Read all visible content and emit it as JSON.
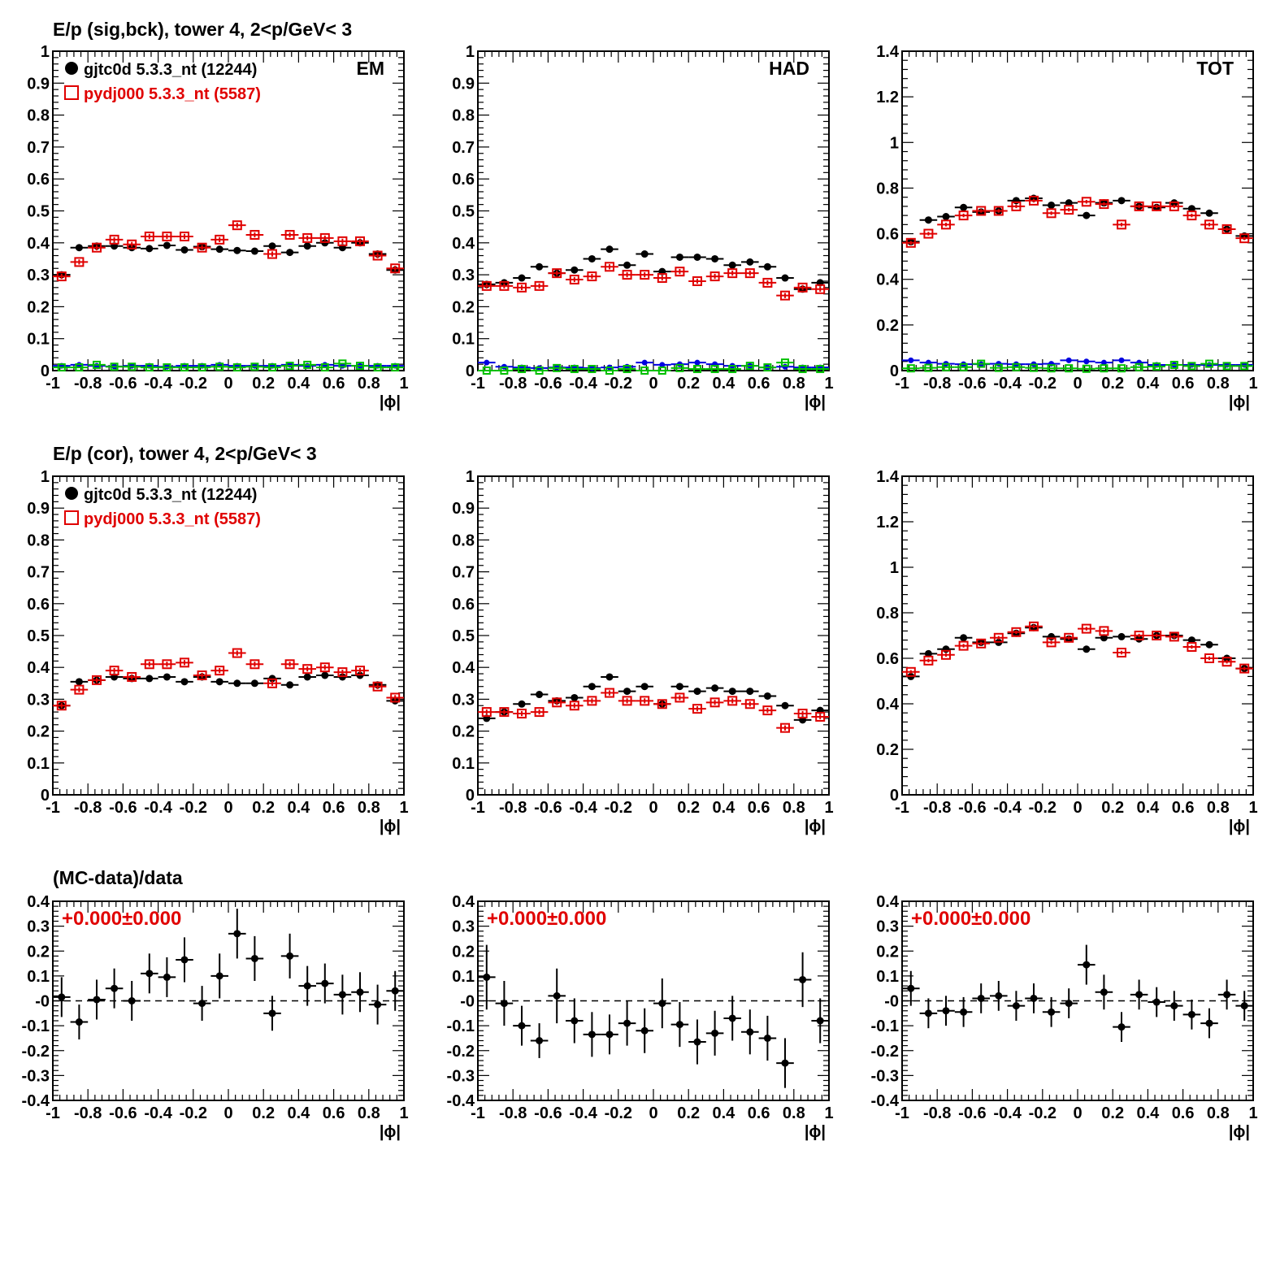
{
  "titles": {
    "row1": "E/p (sig,bck), tower 4,  2<p/GeV< 3",
    "row2": "E/p (cor), tower 4,  2<p/GeV< 3",
    "row3": "(MC-data)/data"
  },
  "legend": {
    "data_label": "gjtc0d 5.3.3_nt (12244)",
    "mc_label": "pydj000 5.3.3_nt (5587)"
  },
  "panel_labels": {
    "em": "EM",
    "had": "HAD",
    "tot": "TOT"
  },
  "x_axis_label": "|ϕ|",
  "fit_result": "+0.000±0.000",
  "colors": {
    "data": "#000000",
    "mc": "#e00000",
    "bck_data": "#0000e0",
    "bck_mc": "#00c000"
  },
  "chart_data": [
    {
      "id": "r1-em",
      "type": "scatter",
      "xlim": [
        -1,
        1
      ],
      "ylim": [
        0,
        1
      ],
      "x": [
        -0.95,
        -0.85,
        -0.75,
        -0.65,
        -0.55,
        -0.45,
        -0.35,
        -0.25,
        -0.15,
        -0.05,
        0.05,
        0.15,
        0.25,
        0.35,
        0.45,
        0.55,
        0.65,
        0.75,
        0.85,
        0.95
      ],
      "series": [
        {
          "name": "gjtc0d 5.3.3_nt (12244)",
          "marker": "dot",
          "values": [
            0.3,
            0.385,
            0.39,
            0.39,
            0.385,
            0.382,
            0.392,
            0.378,
            0.388,
            0.38,
            0.376,
            0.374,
            0.39,
            0.37,
            0.39,
            0.4,
            0.385,
            0.4,
            0.365,
            0.315
          ]
        },
        {
          "name": "pydj000 5.3.3_nt (5587)",
          "marker": "opensq",
          "values": [
            0.295,
            0.34,
            0.385,
            0.41,
            0.395,
            0.42,
            0.42,
            0.42,
            0.385,
            0.41,
            0.455,
            0.425,
            0.365,
            0.425,
            0.415,
            0.415,
            0.405,
            0.405,
            0.36,
            0.32
          ]
        },
        {
          "marker": "bckblue",
          "values": [
            0.015,
            0.018,
            0.015,
            0.013,
            0.015,
            0.015,
            0.012,
            0.015,
            0.015,
            0.018,
            0.015,
            0.015,
            0.015,
            0.018,
            0.015,
            0.018,
            0.015,
            0.015,
            0.015,
            0.015
          ]
        },
        {
          "marker": "bckgreen",
          "values": [
            0.01,
            0.01,
            0.018,
            0.012,
            0.012,
            0.01,
            0.01,
            0.01,
            0.01,
            0.012,
            0.01,
            0.012,
            0.01,
            0.015,
            0.018,
            0.01,
            0.022,
            0.015,
            0.01,
            0.01
          ]
        }
      ]
    },
    {
      "id": "r1-had",
      "type": "scatter",
      "xlim": [
        -1,
        1
      ],
      "ylim": [
        0,
        1
      ],
      "x": [
        -0.95,
        -0.85,
        -0.75,
        -0.65,
        -0.55,
        -0.45,
        -0.35,
        -0.25,
        -0.15,
        -0.05,
        0.05,
        0.15,
        0.25,
        0.35,
        0.45,
        0.55,
        0.65,
        0.75,
        0.85,
        0.95
      ],
      "series": [
        {
          "name": "gjtc0d 5.3.3_nt (12244)",
          "marker": "dot",
          "values": [
            0.27,
            0.275,
            0.29,
            0.325,
            0.305,
            0.315,
            0.35,
            0.38,
            0.33,
            0.365,
            0.31,
            0.355,
            0.355,
            0.35,
            0.33,
            0.34,
            0.325,
            0.29,
            0.255,
            0.275
          ]
        },
        {
          "name": "pydj000 5.3.3_nt (5587)",
          "marker": "opensq",
          "values": [
            0.265,
            0.265,
            0.26,
            0.265,
            0.305,
            0.285,
            0.295,
            0.325,
            0.3,
            0.3,
            0.29,
            0.31,
            0.28,
            0.295,
            0.305,
            0.305,
            0.275,
            0.235,
            0.26,
            0.255
          ]
        },
        {
          "marker": "bckblue",
          "values": [
            0.025,
            0.012,
            0.01,
            0.008,
            0.01,
            0.01,
            0.008,
            0.01,
            0.012,
            0.025,
            0.018,
            0.02,
            0.025,
            0.02,
            0.015,
            0.015,
            0.01,
            0.012,
            0.01,
            0.01
          ]
        },
        {
          "marker": "bckgreen",
          "values": [
            0.0,
            0.0,
            0.005,
            0.0,
            0.008,
            0.005,
            0.005,
            0.0,
            0.005,
            0.0,
            0.0,
            0.008,
            0.005,
            0.005,
            0.005,
            0.015,
            0.01,
            0.025,
            0.005,
            0.005
          ]
        }
      ]
    },
    {
      "id": "r1-tot",
      "type": "scatter",
      "xlim": [
        -1,
        1
      ],
      "ylim": [
        0,
        1.4
      ],
      "x": [
        -0.95,
        -0.85,
        -0.75,
        -0.65,
        -0.55,
        -0.45,
        -0.35,
        -0.25,
        -0.15,
        -0.05,
        0.05,
        0.15,
        0.25,
        0.35,
        0.45,
        0.55,
        0.65,
        0.75,
        0.85,
        0.95
      ],
      "series": [
        {
          "name": "gjtc0d 5.3.3_nt (12244)",
          "marker": "dot",
          "values": [
            0.565,
            0.66,
            0.675,
            0.715,
            0.695,
            0.7,
            0.745,
            0.755,
            0.725,
            0.735,
            0.68,
            0.735,
            0.745,
            0.72,
            0.715,
            0.735,
            0.71,
            0.69,
            0.62,
            0.59
          ]
        },
        {
          "name": "pydj000 5.3.3_nt (5587)",
          "marker": "opensq",
          "values": [
            0.56,
            0.6,
            0.64,
            0.68,
            0.7,
            0.7,
            0.72,
            0.745,
            0.69,
            0.705,
            0.74,
            0.73,
            0.64,
            0.72,
            0.72,
            0.72,
            0.68,
            0.64,
            0.62,
            0.58
          ]
        },
        {
          "marker": "bckblue",
          "values": [
            0.045,
            0.035,
            0.03,
            0.028,
            0.028,
            0.03,
            0.028,
            0.028,
            0.03,
            0.045,
            0.04,
            0.035,
            0.045,
            0.035,
            0.025,
            0.025,
            0.025,
            0.025,
            0.025,
            0.025
          ]
        },
        {
          "marker": "bckgreen",
          "values": [
            0.01,
            0.012,
            0.015,
            0.015,
            0.03,
            0.012,
            0.015,
            0.012,
            0.01,
            0.01,
            0.008,
            0.01,
            0.01,
            0.015,
            0.018,
            0.025,
            0.02,
            0.03,
            0.02,
            0.02
          ]
        }
      ]
    },
    {
      "id": "r2-em",
      "type": "scatter",
      "xlim": [
        -1,
        1
      ],
      "ylim": [
        0,
        1
      ],
      "x": [
        -0.95,
        -0.85,
        -0.75,
        -0.65,
        -0.55,
        -0.45,
        -0.35,
        -0.25,
        -0.15,
        -0.05,
        0.05,
        0.15,
        0.25,
        0.35,
        0.45,
        0.55,
        0.65,
        0.75,
        0.85,
        0.95
      ],
      "series": [
        {
          "name": "gjtc0d 5.3.3_nt (12244)",
          "marker": "dot",
          "values": [
            0.28,
            0.355,
            0.36,
            0.37,
            0.365,
            0.365,
            0.37,
            0.355,
            0.37,
            0.355,
            0.35,
            0.35,
            0.365,
            0.345,
            0.37,
            0.375,
            0.37,
            0.375,
            0.345,
            0.295
          ]
        },
        {
          "name": "pydj000 5.3.3_nt (5587)",
          "marker": "opensq",
          "values": [
            0.28,
            0.33,
            0.36,
            0.39,
            0.37,
            0.41,
            0.41,
            0.415,
            0.375,
            0.39,
            0.445,
            0.41,
            0.35,
            0.41,
            0.395,
            0.4,
            0.385,
            0.39,
            0.34,
            0.305
          ]
        }
      ]
    },
    {
      "id": "r2-had",
      "type": "scatter",
      "xlim": [
        -1,
        1
      ],
      "ylim": [
        0,
        1
      ],
      "x": [
        -0.95,
        -0.85,
        -0.75,
        -0.65,
        -0.55,
        -0.45,
        -0.35,
        -0.25,
        -0.15,
        -0.05,
        0.05,
        0.15,
        0.25,
        0.35,
        0.45,
        0.55,
        0.65,
        0.75,
        0.85,
        0.95
      ],
      "series": [
        {
          "name": "gjtc0d 5.3.3_nt (12244)",
          "marker": "dot",
          "values": [
            0.24,
            0.26,
            0.285,
            0.315,
            0.295,
            0.305,
            0.34,
            0.37,
            0.325,
            0.34,
            0.285,
            0.34,
            0.325,
            0.335,
            0.325,
            0.325,
            0.31,
            0.28,
            0.235,
            0.265
          ]
        },
        {
          "name": "pydj000 5.3.3_nt (5587)",
          "marker": "opensq",
          "values": [
            0.26,
            0.26,
            0.255,
            0.26,
            0.29,
            0.28,
            0.295,
            0.32,
            0.295,
            0.295,
            0.285,
            0.305,
            0.27,
            0.29,
            0.295,
            0.285,
            0.265,
            0.21,
            0.255,
            0.245
          ]
        }
      ]
    },
    {
      "id": "r2-tot",
      "type": "scatter",
      "xlim": [
        -1,
        1
      ],
      "ylim": [
        0,
        1.4
      ],
      "x": [
        -0.95,
        -0.85,
        -0.75,
        -0.65,
        -0.55,
        -0.45,
        -0.35,
        -0.25,
        -0.15,
        -0.05,
        0.05,
        0.15,
        0.25,
        0.35,
        0.45,
        0.55,
        0.65,
        0.75,
        0.85,
        0.95
      ],
      "series": [
        {
          "name": "gjtc0d 5.3.3_nt (12244)",
          "marker": "dot",
          "values": [
            0.52,
            0.62,
            0.64,
            0.69,
            0.67,
            0.67,
            0.71,
            0.735,
            0.695,
            0.685,
            0.64,
            0.69,
            0.695,
            0.685,
            0.7,
            0.7,
            0.68,
            0.66,
            0.6,
            0.555
          ]
        },
        {
          "name": "pydj000 5.3.3_nt (5587)",
          "marker": "opensq",
          "values": [
            0.54,
            0.59,
            0.615,
            0.655,
            0.665,
            0.69,
            0.715,
            0.74,
            0.67,
            0.69,
            0.73,
            0.72,
            0.625,
            0.7,
            0.7,
            0.695,
            0.65,
            0.6,
            0.585,
            0.555
          ]
        }
      ]
    },
    {
      "id": "r3-em",
      "type": "scatter",
      "xlim": [
        -1,
        1
      ],
      "ylim": [
        -0.4,
        0.4
      ],
      "dashed_zero": true,
      "x": [
        -0.95,
        -0.85,
        -0.75,
        -0.65,
        -0.55,
        -0.45,
        -0.35,
        -0.25,
        -0.15,
        -0.05,
        0.05,
        0.15,
        0.25,
        0.35,
        0.45,
        0.55,
        0.65,
        0.75,
        0.85,
        0.95
      ],
      "series": [
        {
          "marker": "dot",
          "values": [
            0.015,
            -0.085,
            0.005,
            0.05,
            0.0,
            0.11,
            0.095,
            0.165,
            -0.01,
            0.1,
            0.27,
            0.17,
            -0.05,
            0.18,
            0.06,
            0.07,
            0.025,
            0.035,
            -0.015,
            0.04
          ],
          "errors": [
            0.08,
            0.07,
            0.08,
            0.08,
            0.08,
            0.08,
            0.08,
            0.09,
            0.07,
            0.09,
            0.1,
            0.09,
            0.07,
            0.09,
            0.08,
            0.08,
            0.08,
            0.08,
            0.08,
            0.08
          ]
        }
      ]
    },
    {
      "id": "r3-had",
      "type": "scatter",
      "xlim": [
        -1,
        1
      ],
      "ylim": [
        -0.4,
        0.4
      ],
      "dashed_zero": true,
      "x": [
        -0.95,
        -0.85,
        -0.75,
        -0.65,
        -0.55,
        -0.45,
        -0.35,
        -0.25,
        -0.15,
        -0.05,
        0.05,
        0.15,
        0.25,
        0.35,
        0.45,
        0.55,
        0.65,
        0.75,
        0.85,
        0.95
      ],
      "series": [
        {
          "marker": "dot",
          "values": [
            0.095,
            -0.01,
            -0.1,
            -0.16,
            0.02,
            -0.08,
            -0.135,
            -0.135,
            -0.09,
            -0.12,
            -0.01,
            -0.095,
            -0.165,
            -0.13,
            -0.07,
            -0.125,
            -0.15,
            -0.25,
            0.085,
            -0.08
          ],
          "errors": [
            0.13,
            0.09,
            0.08,
            0.07,
            0.11,
            0.09,
            0.09,
            0.08,
            0.09,
            0.09,
            0.1,
            0.09,
            0.09,
            0.09,
            0.09,
            0.09,
            0.09,
            0.1,
            0.11,
            0.09
          ]
        }
      ]
    },
    {
      "id": "r3-tot",
      "type": "scatter",
      "xlim": [
        -1,
        1
      ],
      "ylim": [
        -0.4,
        0.4
      ],
      "dashed_zero": true,
      "x": [
        -0.95,
        -0.85,
        -0.75,
        -0.65,
        -0.55,
        -0.45,
        -0.35,
        -0.25,
        -0.15,
        -0.05,
        0.05,
        0.15,
        0.25,
        0.35,
        0.45,
        0.55,
        0.65,
        0.75,
        0.85,
        0.95
      ],
      "series": [
        {
          "marker": "dot",
          "values": [
            0.05,
            -0.05,
            -0.04,
            -0.045,
            0.01,
            0.02,
            -0.02,
            0.01,
            -0.045,
            -0.01,
            0.145,
            0.035,
            -0.105,
            0.025,
            -0.005,
            -0.02,
            -0.055,
            -0.09,
            0.025,
            -0.02
          ],
          "errors": [
            0.07,
            0.06,
            0.06,
            0.06,
            0.06,
            0.06,
            0.06,
            0.06,
            0.06,
            0.06,
            0.08,
            0.07,
            0.06,
            0.06,
            0.06,
            0.06,
            0.06,
            0.06,
            0.06,
            0.06
          ]
        }
      ]
    }
  ]
}
